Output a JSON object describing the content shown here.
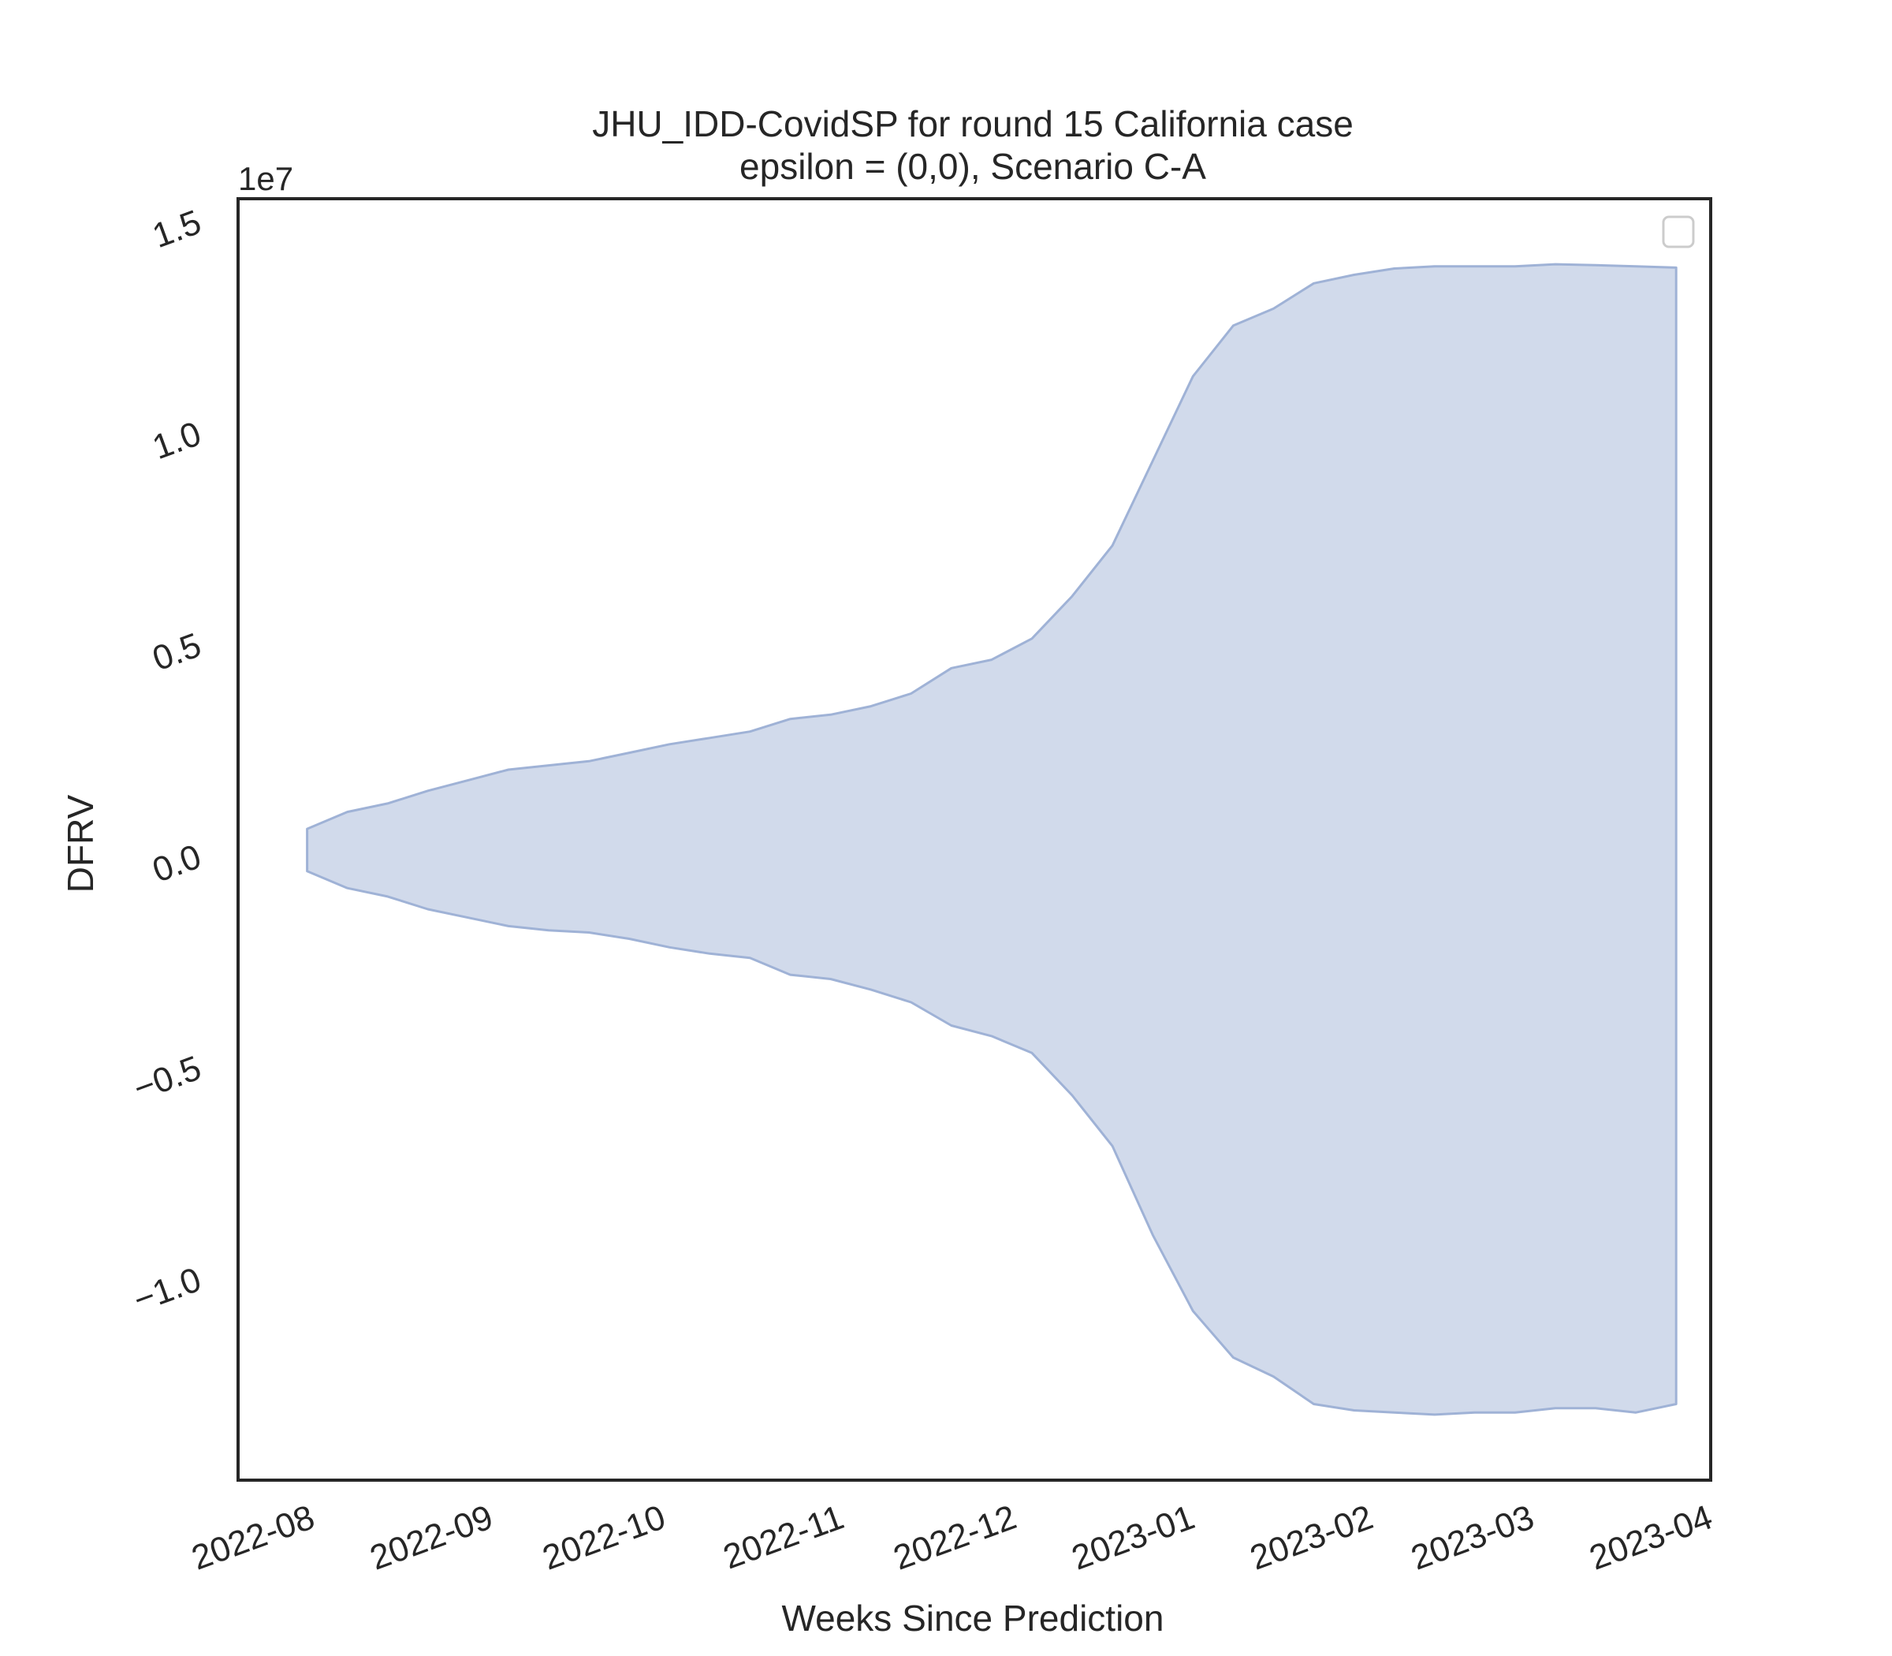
{
  "chart_data": {
    "type": "area",
    "title": "JHU_IDD-CovidSP for round 15 California case",
    "subtitle": "epsilon = (0,0), Scenario C-A",
    "xlabel": "Weeks Since Prediction",
    "ylabel": "DFRV",
    "y_offset_label": "1e7",
    "xlim": [
      "2022-07-19",
      "2023-04-01"
    ],
    "ylim": [
      -14.8,
      15.5
    ],
    "x_ticks": [
      {
        "date": "2022-08-01",
        "label": "2022-08"
      },
      {
        "date": "2022-09-01",
        "label": "2022-09"
      },
      {
        "date": "2022-10-01",
        "label": "2022-10"
      },
      {
        "date": "2022-11-01",
        "label": "2022-11"
      },
      {
        "date": "2022-12-01",
        "label": "2022-12"
      },
      {
        "date": "2023-01-01",
        "label": "2023-01"
      },
      {
        "date": "2023-02-01",
        "label": "2023-02"
      },
      {
        "date": "2023-03-01",
        "label": "2023-03"
      },
      {
        "date": "2023-04-01",
        "label": "2023-04"
      }
    ],
    "y_ticks": [
      {
        "value": -10,
        "label": "−1.0"
      },
      {
        "value": -5,
        "label": "−0.5"
      },
      {
        "value": 0,
        "label": "0.0"
      },
      {
        "value": 5,
        "label": "0.5"
      },
      {
        "value": 10,
        "label": "1.0"
      },
      {
        "value": 15,
        "label": "1.5"
      }
    ],
    "grid": false,
    "legend": {
      "placement": "top-right",
      "entries": []
    },
    "series": [
      {
        "fill_color": "#b0c0dd",
        "fill_opacity": 0.58,
        "edge_color": "#9fb2d6",
        "x": [
          "2022-07-31",
          "2022-08-07",
          "2022-08-14",
          "2022-08-21",
          "2022-08-28",
          "2022-09-04",
          "2022-09-11",
          "2022-09-18",
          "2022-09-25",
          "2022-10-02",
          "2022-10-09",
          "2022-10-16",
          "2022-10-23",
          "2022-10-30",
          "2022-11-06",
          "2022-11-13",
          "2022-11-20",
          "2022-11-27",
          "2022-12-04",
          "2022-12-11",
          "2022-12-18",
          "2022-12-25",
          "2023-01-01",
          "2023-01-08",
          "2023-01-15",
          "2023-01-22",
          "2023-01-29",
          "2023-02-05",
          "2023-02-12",
          "2023-02-19",
          "2023-02-26",
          "2023-03-05",
          "2023-03-12",
          "2023-03-19",
          "2023-03-26"
        ],
        "upper": [
          0.6,
          1.0,
          1.2,
          1.5,
          1.75,
          2.0,
          2.1,
          2.2,
          2.4,
          2.6,
          2.75,
          2.9,
          3.2,
          3.3,
          3.5,
          3.8,
          4.4,
          4.6,
          5.1,
          6.1,
          7.3,
          9.3,
          11.3,
          12.5,
          12.9,
          13.5,
          13.7,
          13.85,
          13.9,
          13.9,
          13.9,
          13.95,
          13.93,
          13.9,
          13.87
        ],
        "lower": [
          -0.4,
          -0.8,
          -1.0,
          -1.3,
          -1.5,
          -1.7,
          -1.8,
          -1.85,
          -2.0,
          -2.2,
          -2.35,
          -2.45,
          -2.85,
          -2.95,
          -3.2,
          -3.5,
          -4.05,
          -4.3,
          -4.7,
          -5.7,
          -6.9,
          -9.0,
          -10.8,
          -11.9,
          -12.35,
          -13.0,
          -13.15,
          -13.2,
          -13.25,
          -13.2,
          -13.2,
          -13.1,
          -13.1,
          -13.2,
          -13.0
        ]
      }
    ]
  }
}
